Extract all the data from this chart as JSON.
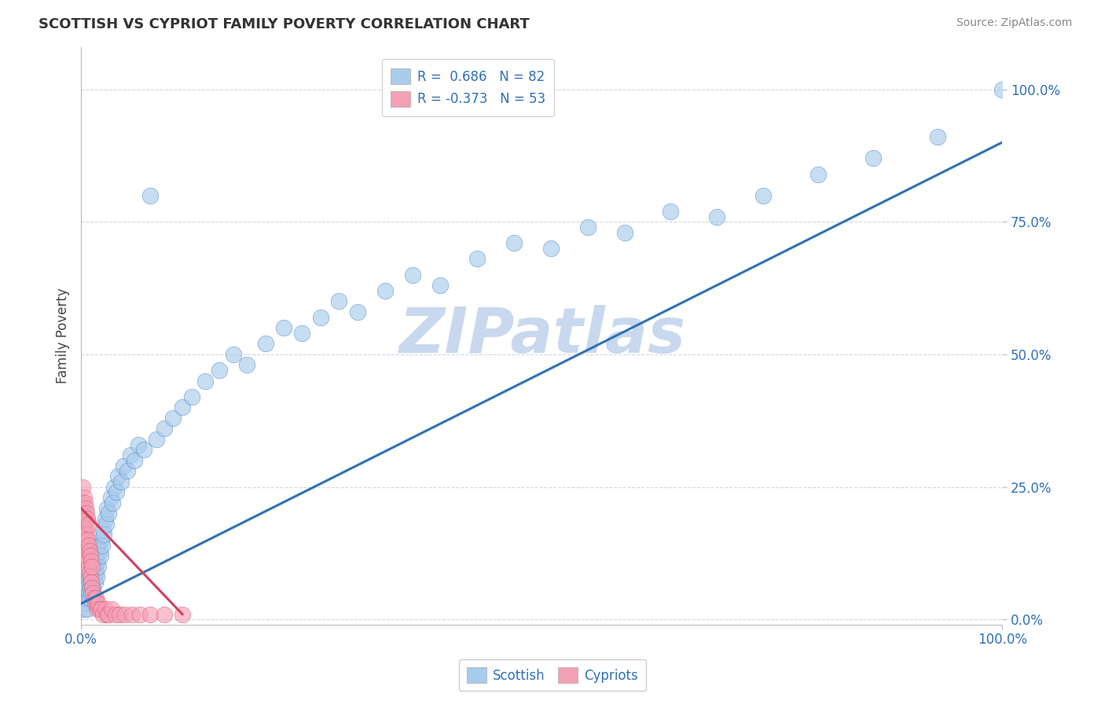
{
  "title": "SCOTTISH VS CYPRIOT FAMILY POVERTY CORRELATION CHART",
  "source": "Source: ZipAtlas.com",
  "ylabel": "Family Poverty",
  "ytick_labels": [
    "0.0%",
    "25.0%",
    "50.0%",
    "75.0%",
    "100.0%"
  ],
  "ytick_values": [
    0.0,
    0.25,
    0.5,
    0.75,
    1.0
  ],
  "xtick_labels": [
    "0.0%",
    "100.0%"
  ],
  "xtick_values": [
    0.0,
    1.0
  ],
  "xlim": [
    0.0,
    1.0
  ],
  "ylim": [
    -0.01,
    1.08
  ],
  "scottish_R": 0.686,
  "scottish_N": 82,
  "cypriot_R": -0.373,
  "cypriot_N": 53,
  "scatter_color_scottish": "#A8CCEC",
  "scatter_color_cypriot": "#F4A0B5",
  "line_color_scottish": "#3070B8",
  "line_color_cypriot": "#D04060",
  "grid_color": "#C8CCE0",
  "background_color": "#FFFFFF",
  "watermark_color": "#C8D8EE",
  "legend_label_scottish": "Scottish",
  "legend_label_cypriot": "Cypriots",
  "scottish_x": [
    0.003,
    0.004,
    0.005,
    0.006,
    0.006,
    0.007,
    0.007,
    0.008,
    0.008,
    0.009,
    0.009,
    0.01,
    0.01,
    0.011,
    0.011,
    0.012,
    0.012,
    0.013,
    0.013,
    0.014,
    0.014,
    0.015,
    0.015,
    0.016,
    0.016,
    0.017,
    0.018,
    0.018,
    0.019,
    0.02,
    0.021,
    0.022,
    0.023,
    0.024,
    0.025,
    0.026,
    0.027,
    0.028,
    0.03,
    0.032,
    0.034,
    0.036,
    0.038,
    0.04,
    0.043,
    0.046,
    0.05,
    0.054,
    0.058,
    0.062,
    0.068,
    0.075,
    0.082,
    0.09,
    0.1,
    0.11,
    0.12,
    0.135,
    0.15,
    0.165,
    0.18,
    0.2,
    0.22,
    0.24,
    0.26,
    0.28,
    0.3,
    0.33,
    0.36,
    0.39,
    0.43,
    0.47,
    0.51,
    0.55,
    0.59,
    0.64,
    0.69,
    0.74,
    0.8,
    0.86,
    0.93,
    1.0
  ],
  "scottish_y": [
    0.02,
    0.05,
    0.03,
    0.07,
    0.04,
    0.06,
    0.02,
    0.05,
    0.08,
    0.04,
    0.07,
    0.06,
    0.09,
    0.05,
    0.08,
    0.07,
    0.1,
    0.06,
    0.09,
    0.08,
    0.11,
    0.07,
    0.1,
    0.09,
    0.12,
    0.08,
    0.11,
    0.14,
    0.1,
    0.13,
    0.12,
    0.15,
    0.14,
    0.17,
    0.16,
    0.19,
    0.18,
    0.21,
    0.2,
    0.23,
    0.22,
    0.25,
    0.24,
    0.27,
    0.26,
    0.29,
    0.28,
    0.31,
    0.3,
    0.33,
    0.32,
    0.8,
    0.34,
    0.36,
    0.38,
    0.4,
    0.42,
    0.45,
    0.47,
    0.5,
    0.48,
    0.52,
    0.55,
    0.54,
    0.57,
    0.6,
    0.58,
    0.62,
    0.65,
    0.63,
    0.68,
    0.71,
    0.7,
    0.74,
    0.73,
    0.77,
    0.76,
    0.8,
    0.84,
    0.87,
    0.91,
    1.0
  ],
  "cypriot_x": [
    0.001,
    0.001,
    0.002,
    0.002,
    0.002,
    0.003,
    0.003,
    0.003,
    0.004,
    0.004,
    0.004,
    0.005,
    0.005,
    0.005,
    0.006,
    0.006,
    0.006,
    0.007,
    0.007,
    0.007,
    0.008,
    0.008,
    0.008,
    0.009,
    0.009,
    0.01,
    0.01,
    0.011,
    0.011,
    0.012,
    0.012,
    0.013,
    0.014,
    0.015,
    0.016,
    0.017,
    0.018,
    0.019,
    0.02,
    0.022,
    0.024,
    0.026,
    0.028,
    0.03,
    0.033,
    0.037,
    0.042,
    0.048,
    0.055,
    0.064,
    0.075,
    0.09,
    0.11
  ],
  "cypriot_y": [
    0.18,
    0.22,
    0.15,
    0.2,
    0.25,
    0.16,
    0.19,
    0.23,
    0.14,
    0.18,
    0.22,
    0.13,
    0.17,
    0.21,
    0.12,
    0.16,
    0.2,
    0.11,
    0.15,
    0.19,
    0.1,
    0.14,
    0.18,
    0.09,
    0.13,
    0.08,
    0.12,
    0.07,
    0.11,
    0.06,
    0.1,
    0.05,
    0.04,
    0.03,
    0.04,
    0.03,
    0.02,
    0.03,
    0.02,
    0.02,
    0.01,
    0.02,
    0.01,
    0.01,
    0.02,
    0.01,
    0.01,
    0.01,
    0.01,
    0.01,
    0.01,
    0.01,
    0.01
  ],
  "scottish_line_x": [
    0.0,
    1.0
  ],
  "scottish_line_y": [
    0.03,
    0.9
  ],
  "cypriot_line_x": [
    0.0,
    0.11
  ],
  "cypriot_line_y": [
    0.21,
    0.01
  ]
}
